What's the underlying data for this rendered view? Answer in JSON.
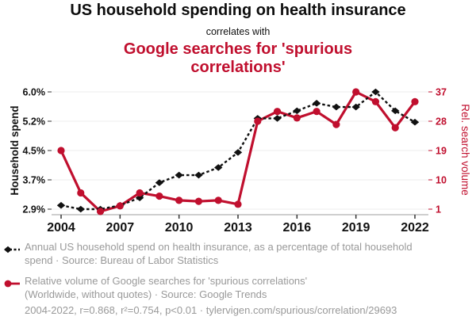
{
  "header": {
    "title": "US household spending on health insurance",
    "connector": "correlates with",
    "subtitle": "Google searches for 'spurious\ncorrelations'"
  },
  "colors": {
    "accent_red": "#c00f2e",
    "series_black": "#111111",
    "legend_gray": "#999999",
    "gridline": "#ececec",
    "axis_line": "#b0b0b0",
    "tick": "#333333"
  },
  "chart_data": {
    "type": "line",
    "x": [
      2004,
      2005,
      2006,
      2007,
      2008,
      2009,
      2010,
      2011,
      2012,
      2013,
      2014,
      2015,
      2016,
      2017,
      2018,
      2019,
      2020,
      2021,
      2022
    ],
    "x_tick_labels": [
      "2004",
      "2007",
      "2010",
      "2013",
      "2016",
      "2019",
      "2022"
    ],
    "series": [
      {
        "name": "Annual US household spend on health insurance (% of total household spend)",
        "axis": "left",
        "color": "#111111",
        "line_style": "dashed",
        "marker": "diamond",
        "values": [
          3.0,
          2.9,
          2.9,
          3.0,
          3.2,
          3.6,
          3.8,
          3.8,
          4.0,
          4.4,
          5.3,
          5.3,
          5.5,
          5.7,
          5.6,
          5.6,
          6.0,
          5.5,
          5.2
        ]
      },
      {
        "name": "Relative volume of Google searches for 'spurious correlations'",
        "axis": "right",
        "color": "#c00f2e",
        "line_style": "solid",
        "marker": "circle",
        "values": [
          19,
          6,
          0.3,
          2,
          6,
          5,
          3.7,
          3.4,
          3.7,
          2.5,
          28,
          31,
          29,
          31,
          27,
          37,
          34,
          26,
          34
        ]
      }
    ],
    "left_axis": {
      "label": "Household spend",
      "tick_labels": [
        "6.0%",
        "5.2%",
        "4.5%",
        "3.7%",
        "2.9%"
      ],
      "range": [
        2.9,
        6.0
      ],
      "color": "#111111"
    },
    "right_axis": {
      "label": "Rel. search volume",
      "tick_labels": [
        "37",
        "28",
        "19",
        "10",
        "1"
      ],
      "range": [
        1,
        37
      ],
      "color": "#c00f2e"
    },
    "grid": "horizontal",
    "legend_position": "bottom"
  },
  "legend": {
    "items": [
      {
        "marker": "black-diamond-dashed",
        "text": "Annual US household spend on health insurance, as a percentage of total household\nspend · Source: Bureau of Labor Statistics"
      },
      {
        "marker": "red-circle-solid",
        "text": "Relative volume of Google searches for 'spurious correlations'\n(Worldwide, without quotes) · Source: Google Trends"
      }
    ]
  },
  "footer": {
    "text": "2004-2022, r=0.868, r²=0.754, p<0.01 · tylervigen.com/spurious/correlation/29693"
  }
}
